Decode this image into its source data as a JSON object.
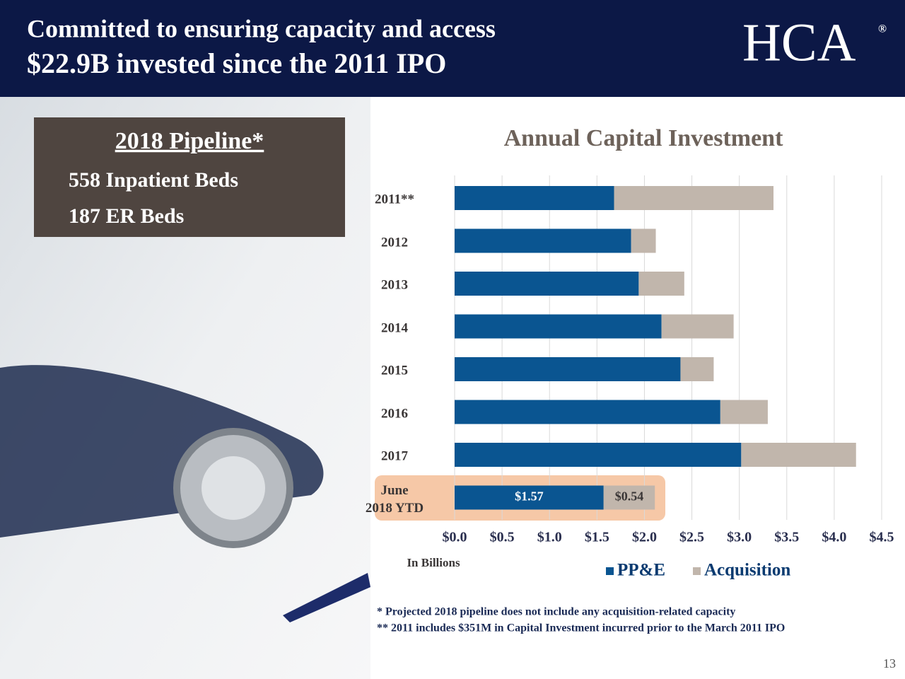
{
  "header": {
    "line1": "Committed to ensuring capacity and access",
    "line2": "$22.9B invested since the 2011 IPO",
    "logo": "HCA",
    "logo_mark": "®"
  },
  "pipeline": {
    "title": "2018 Pipeline*",
    "items": [
      "558 Inpatient Beds",
      "187 ER Beds"
    ]
  },
  "chart_data": {
    "type": "stacked-bar-horizontal",
    "title": "Annual Capital Investment",
    "categories": [
      "2011**",
      "2012",
      "2013",
      "2014",
      "2015",
      "2016",
      "2017",
      "June\n2018 YTD"
    ],
    "series": [
      {
        "name": "PP&E",
        "color": "#0a5591",
        "values": [
          1.68,
          1.86,
          1.94,
          2.18,
          2.38,
          2.8,
          3.02,
          1.57
        ],
        "value_labels": [
          null,
          null,
          null,
          null,
          null,
          null,
          null,
          "$1.57"
        ]
      },
      {
        "name": "Acquisition",
        "color": "#c1b6ac",
        "values": [
          1.68,
          0.26,
          0.48,
          0.76,
          0.35,
          0.5,
          1.21,
          0.54
        ],
        "value_labels": [
          null,
          null,
          null,
          null,
          null,
          null,
          null,
          "$0.54"
        ]
      }
    ],
    "xlim": [
      0,
      4.5
    ],
    "xticks": [
      {
        "value": 0,
        "label": "$0.0"
      },
      {
        "value": 0.5,
        "label": "$0.5"
      },
      {
        "value": 1,
        "label": "$1.0"
      },
      {
        "value": 1.5,
        "label": "$1.5"
      },
      {
        "value": 2,
        "label": "$2.0"
      },
      {
        "value": 2.5,
        "label": "$2.5"
      },
      {
        "value": 3,
        "label": "$3.0"
      },
      {
        "value": 3.5,
        "label": "$3.5"
      },
      {
        "value": 4,
        "label": "$4.0"
      },
      {
        "value": 4.5,
        "label": "$4.5"
      }
    ],
    "x_axis_label": "In Billions",
    "grid": true
  },
  "footnotes": [
    "* Projected 2018 pipeline does not include any acquisition-related capacity",
    "** 2011 includes $351M in Capital Investment incurred prior to the March 2011 IPO"
  ],
  "page_number": "13"
}
